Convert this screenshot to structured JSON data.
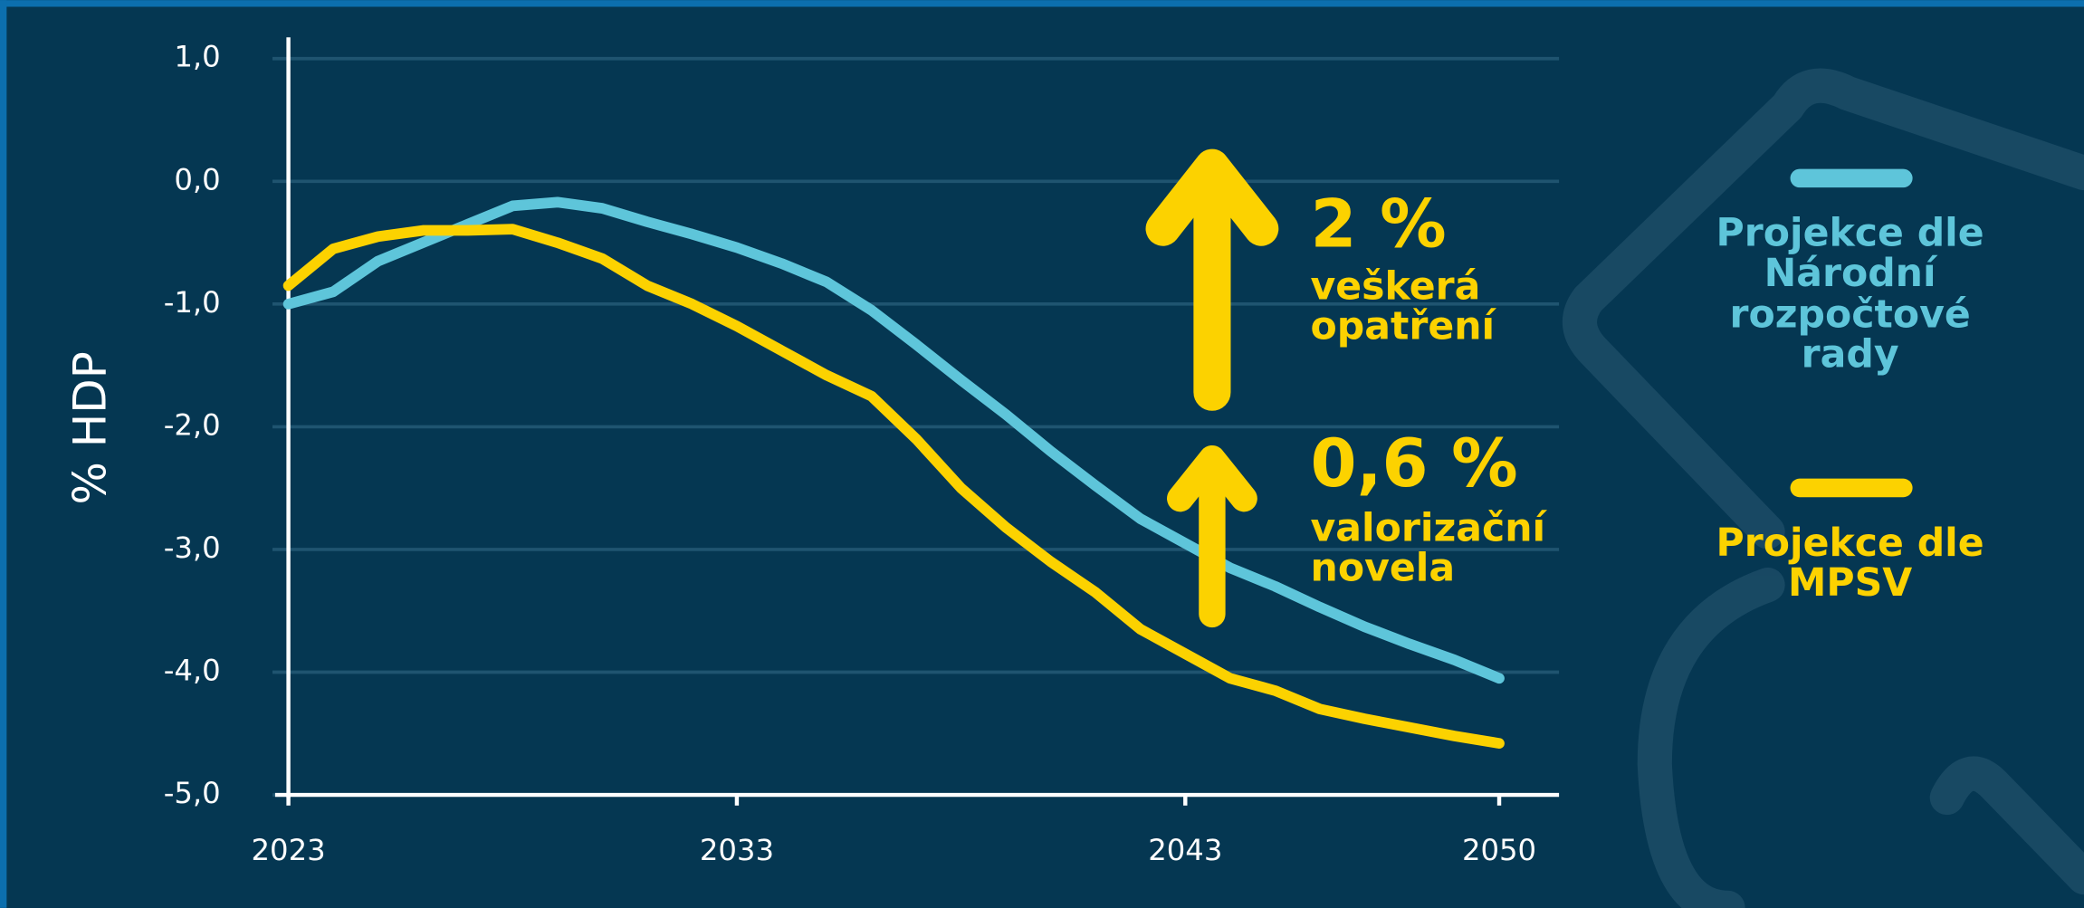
{
  "chart_data": {
    "type": "line",
    "y_label": "% HDP",
    "x": [
      2023,
      2024,
      2025,
      2026,
      2027,
      2028,
      2029,
      2030,
      2031,
      2032,
      2033,
      2034,
      2035,
      2036,
      2037,
      2038,
      2039,
      2040,
      2041,
      2042,
      2043,
      2044,
      2045,
      2046,
      2047,
      2048,
      2049,
      2050
    ],
    "xlim": [
      2023,
      2050
    ],
    "xticks": [
      2023,
      2033,
      2043,
      2050
    ],
    "ylim": [
      -5,
      1
    ],
    "yticks": [
      {
        "value": 1,
        "label": "1,0"
      },
      {
        "value": 0,
        "label": "0,0"
      },
      {
        "value": -1,
        "label": "-1,0"
      },
      {
        "value": -2,
        "label": "-2,0"
      },
      {
        "value": -3,
        "label": "-3,0"
      },
      {
        "value": -4,
        "label": "-4,0"
      },
      {
        "value": -5,
        "label": "-5,0"
      }
    ],
    "grid": true,
    "series": [
      {
        "name": "Projekce dle Národní rozpočtové rady",
        "color": "#5ec5da",
        "values": [
          -1.0,
          -0.9,
          -0.65,
          -0.5,
          -0.35,
          -0.2,
          -0.17,
          -0.22,
          -0.33,
          -0.43,
          -0.54,
          -0.67,
          -0.82,
          -1.05,
          -1.33,
          -1.62,
          -1.9,
          -2.2,
          -2.48,
          -2.75,
          -2.95,
          -3.15,
          -3.3,
          -3.47,
          -3.63,
          -3.77,
          -3.9,
          -4.05
        ]
      },
      {
        "name": "Projekce dle MPSV",
        "color": "#fcd200",
        "values": [
          -0.85,
          -0.55,
          -0.45,
          -0.4,
          -0.4,
          -0.39,
          -0.5,
          -0.63,
          -0.85,
          -1.0,
          -1.18,
          -1.38,
          -1.58,
          -1.75,
          -2.1,
          -2.5,
          -2.82,
          -3.1,
          -3.35,
          -3.65,
          -3.85,
          -4.05,
          -4.15,
          -4.3,
          -4.38,
          -4.45,
          -4.52,
          -4.58
        ]
      }
    ],
    "annotations": [
      {
        "label": "2 %",
        "text": "veškerá opatření"
      },
      {
        "label": "0,6 %",
        "text": "valorizační novela"
      }
    ]
  }
}
